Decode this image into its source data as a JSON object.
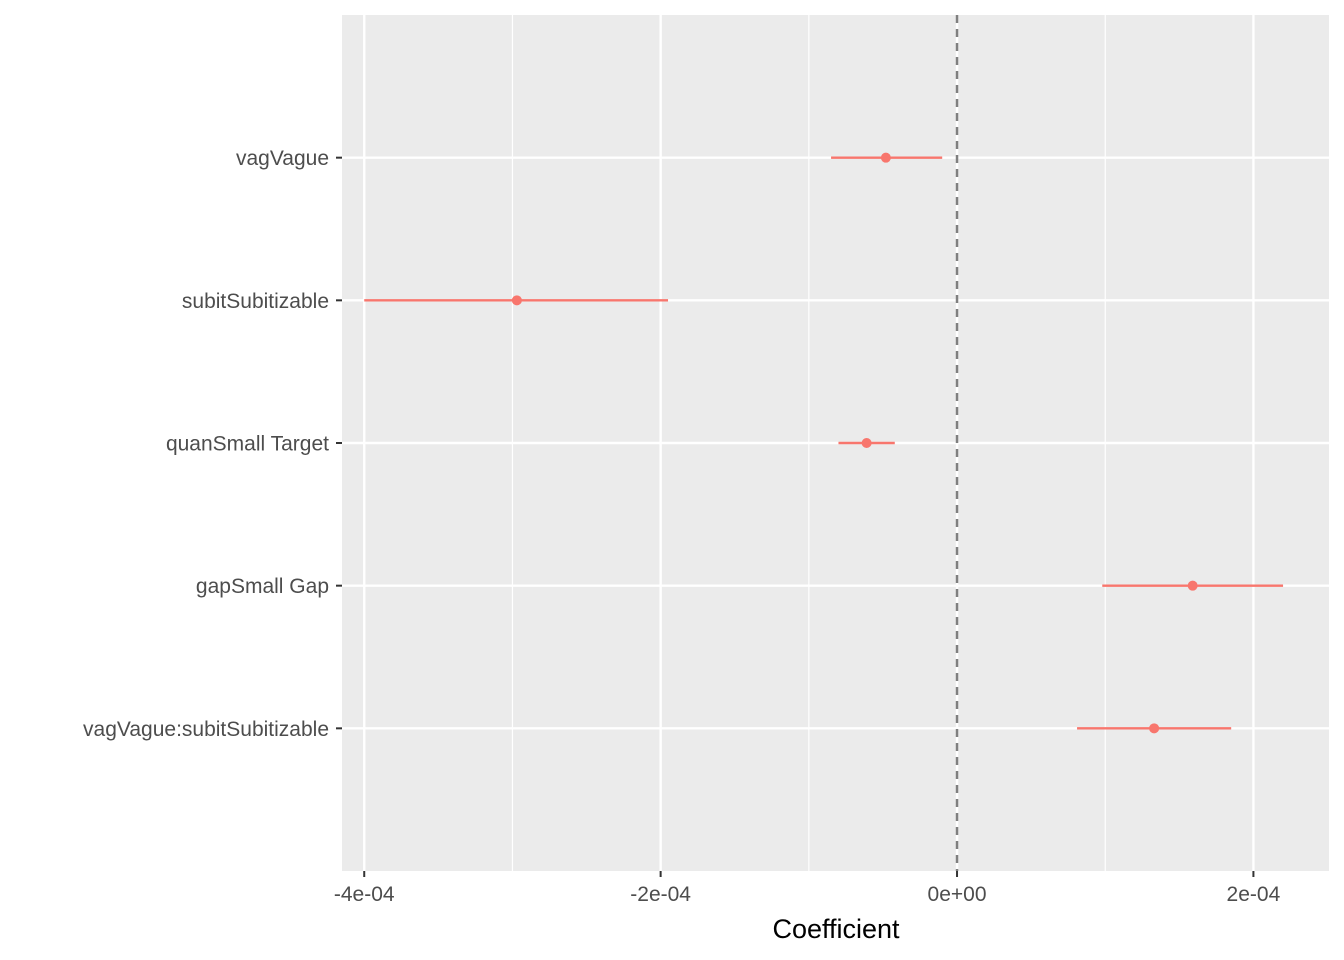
{
  "chart_data": {
    "type": "scatter",
    "subtype": "coefficient-plot",
    "title": "",
    "xlabel": "Coefficient",
    "ylabel": "",
    "xlim": [
      -0.000415,
      0.000251
    ],
    "x_ticks": [
      {
        "value": -0.0004,
        "label": "-4e-04"
      },
      {
        "value": -0.0002,
        "label": "-2e-04"
      },
      {
        "value": 0.0,
        "label": "0e+00"
      },
      {
        "value": 0.0002,
        "label": "2e-04"
      }
    ],
    "x_minor_ticks": [
      -0.0003,
      -0.0001,
      0.0001
    ],
    "reference_line": {
      "x": 0,
      "style": "dashed",
      "color": "#7f7f7f"
    },
    "grid": true,
    "legend": "none",
    "colors": {
      "panel_background": "#ebebeb",
      "grid": "#ffffff",
      "series": "#f8766d",
      "tick_mark": "#333333"
    },
    "terms": [
      {
        "label": "vagVague",
        "estimate": -4.8e-05,
        "low": -8.5e-05,
        "high": -1e-05
      },
      {
        "label": "subitSubitizable",
        "estimate": -0.000297,
        "low": -0.0004,
        "high": -0.000195
      },
      {
        "label": "quanSmall Target",
        "estimate": -6.1e-05,
        "low": -8e-05,
        "high": -4.2e-05
      },
      {
        "label": "gapSmall Gap",
        "estimate": 0.000159,
        "low": 9.8e-05,
        "high": 0.00022
      },
      {
        "label": "vagVague:subitSubitizable",
        "estimate": 0.000133,
        "low": 8.1e-05,
        "high": 0.000185
      }
    ]
  }
}
